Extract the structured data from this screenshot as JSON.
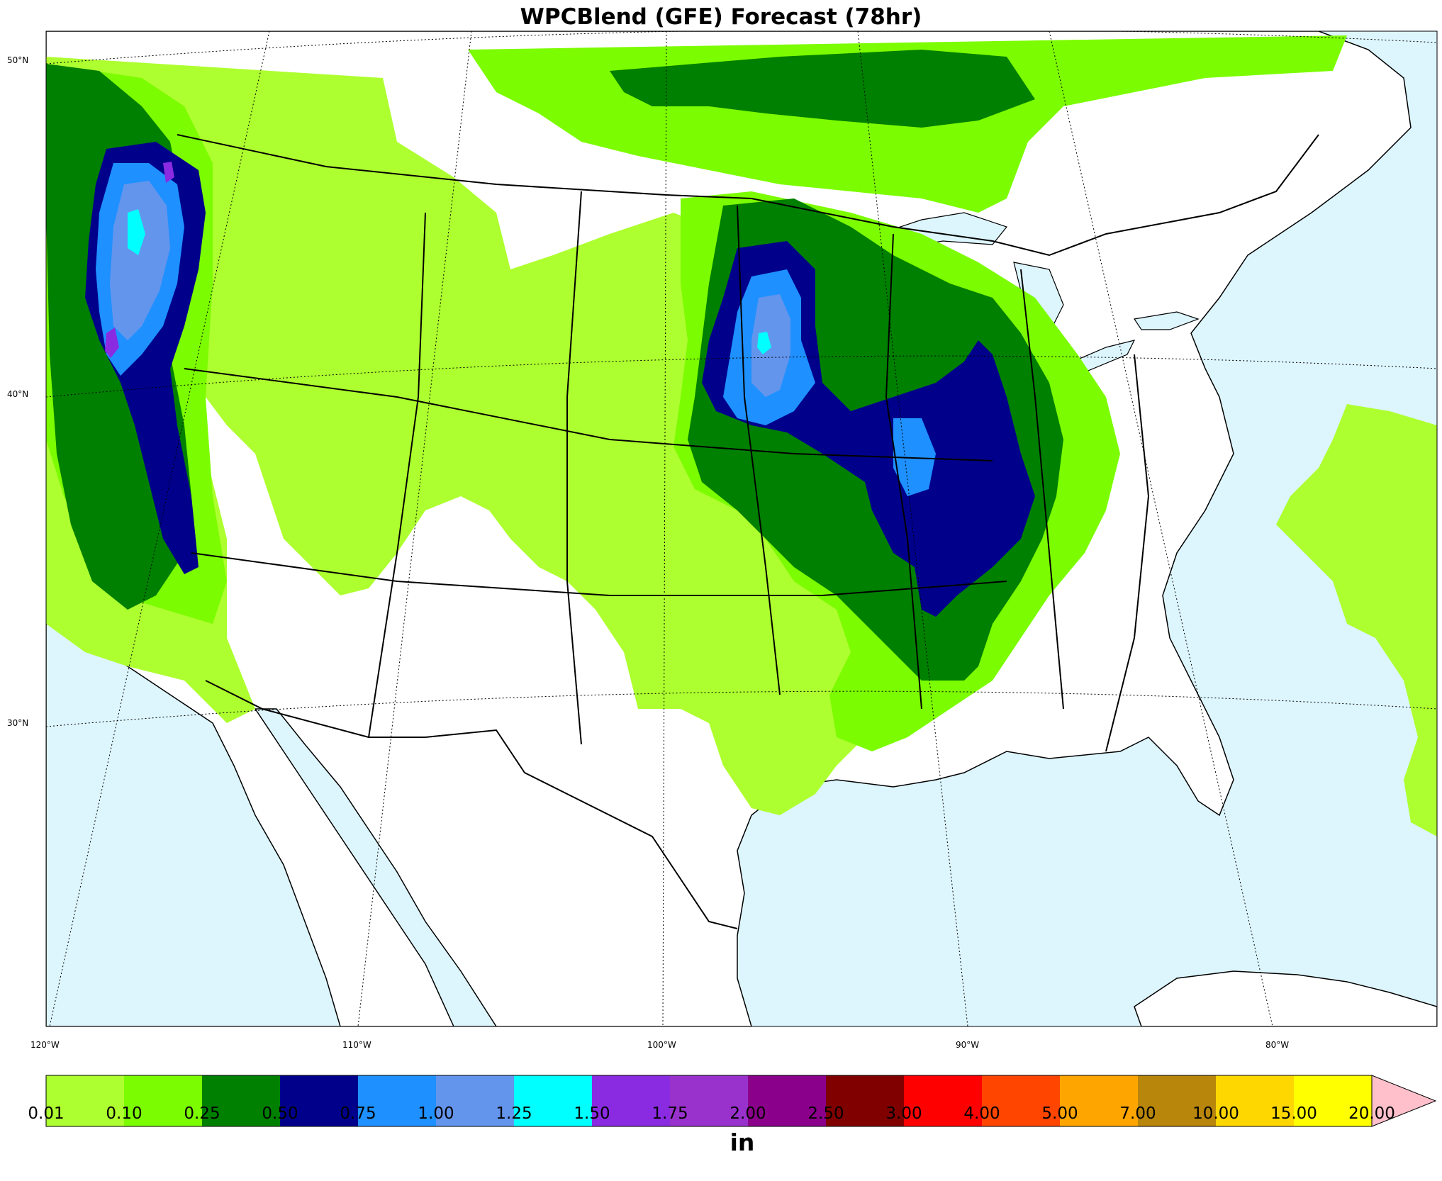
{
  "title": "WPCBlend (GFE) Forecast (78hr)",
  "lat_labels": [
    "50°N",
    "40°N",
    "30°N"
  ],
  "lon_labels": [
    "120°W",
    "110°W",
    "100°W",
    "90°W",
    "80°W"
  ],
  "units": "in",
  "colorbar": {
    "ticks": [
      "0.01",
      "0.10",
      "0.25",
      "0.50",
      "0.75",
      "1.00",
      "1.25",
      "1.50",
      "1.75",
      "2.00",
      "2.50",
      "3.00",
      "4.00",
      "5.00",
      "7.00",
      "10.00",
      "15.00",
      "20.00"
    ],
    "colors": [
      "#adff2f",
      "#7cfc00",
      "#008000",
      "#00008b",
      "#1e90ff",
      "#6495ed",
      "#00ffff",
      "#8a2be2",
      "#9932cc",
      "#8b008b",
      "#800000",
      "#ff0000",
      "#ff4500",
      "#ffa500",
      "#b8860b",
      "#ffd700",
      "#ffff00"
    ],
    "extend_color": "#ffc0cb"
  },
  "colors": {
    "ocean": "#ddf5fd",
    "land": "#ffffff",
    "border": "#000000"
  }
}
